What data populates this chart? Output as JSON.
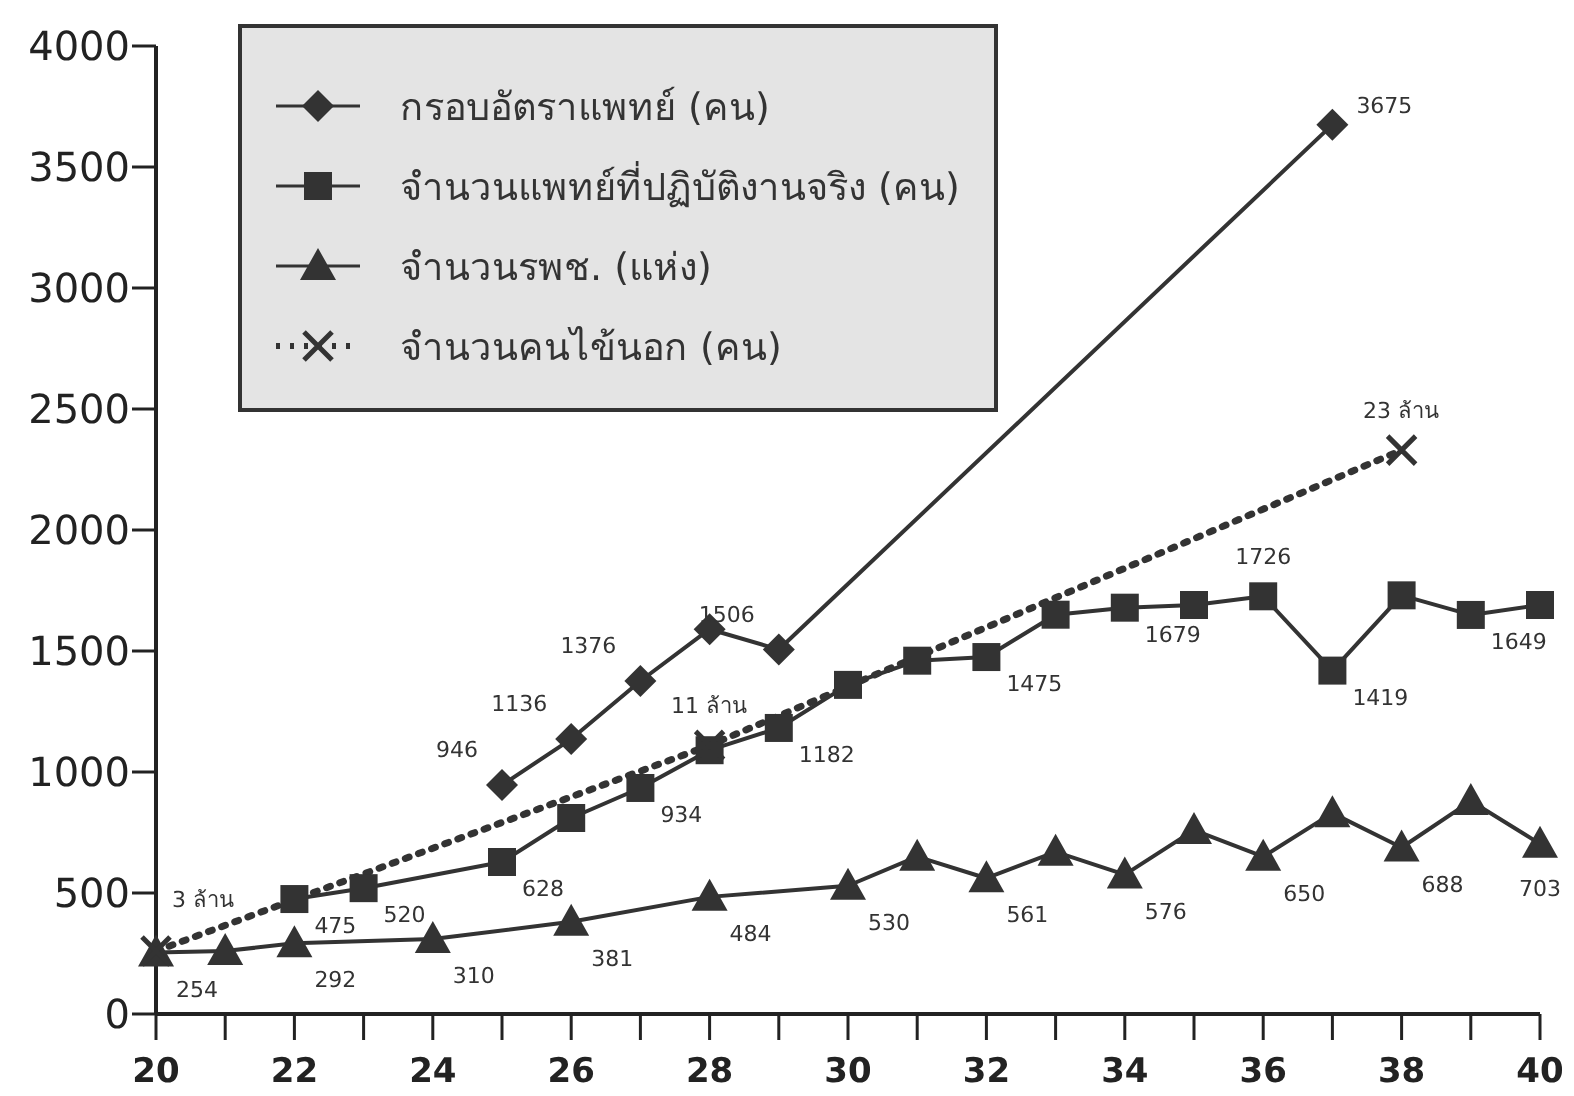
{
  "chart_data": {
    "type": "line",
    "xlim": [
      20,
      40
    ],
    "ylim": [
      0,
      4000
    ],
    "xticks": [
      20,
      {
        "value": 21,
        "label": null
      },
      22,
      {
        "value": 23,
        "label": null
      },
      24,
      {
        "value": 25,
        "label": null
      },
      26,
      {
        "value": 27,
        "label": null
      },
      28,
      {
        "value": 29,
        "label": null
      },
      30,
      {
        "value": 31,
        "label": null
      },
      32,
      {
        "value": 33,
        "label": null
      },
      34,
      {
        "value": 35,
        "label": null
      },
      36,
      {
        "value": 37,
        "label": null
      },
      38,
      {
        "value": 39,
        "label": null
      },
      40
    ],
    "yticks": [
      0,
      500,
      1000,
      1500,
      2000,
      2500,
      3000,
      3500,
      4000
    ],
    "grid": false,
    "legend": "top left",
    "annotations": [
      {
        "text": "3 ล้าน",
        "x": 20,
        "y": 260
      },
      {
        "text": "11 ล้าน",
        "x": 28,
        "y": 1110
      },
      {
        "text": "23 ล้าน",
        "x": 38,
        "y": 2330
      }
    ],
    "series": [
      {
        "name": "กรอบอัตราแพทย์ (คน)",
        "color": "#333333",
        "marker": "diamond",
        "line_style": "solid",
        "x": [
          25,
          26,
          27,
          28,
          29,
          37
        ],
        "values": [
          946,
          1136,
          1376,
          1590,
          1506,
          3675
        ],
        "value_labels": [
          "946",
          "1136",
          "1376",
          null,
          "1506",
          "3675"
        ]
      },
      {
        "name": "จำนวนแพทย์ที่ปฏิบัติงานจริง (คน)",
        "color": "#333333",
        "marker": "square",
        "line_style": "solid",
        "x": [
          22,
          23,
          25,
          26,
          27,
          28,
          29,
          30,
          31,
          32,
          33,
          34,
          35,
          36,
          37,
          38,
          39,
          40
        ],
        "values": [
          475,
          520,
          628,
          810,
          934,
          1090,
          1182,
          1360,
          1460,
          1475,
          1650,
          1679,
          1690,
          1726,
          1419,
          1730,
          1649,
          1690
        ],
        "value_labels": [
          "475",
          "520",
          "628",
          null,
          "934",
          null,
          "1182",
          null,
          null,
          "1475",
          null,
          "1679",
          null,
          "1726",
          "1419",
          null,
          "1649",
          null
        ]
      },
      {
        "name": "จำนวนรพช. (แห่ง)",
        "color": "#333333",
        "marker": "triangle",
        "line_style": "solid",
        "x": [
          20,
          21,
          22,
          24,
          26,
          28,
          30,
          31,
          32,
          33,
          34,
          35,
          36,
          37,
          38,
          39,
          40
        ],
        "values": [
          254,
          260,
          292,
          310,
          381,
          484,
          530,
          650,
          561,
          670,
          576,
          760,
          650,
          830,
          688,
          880,
          703
        ],
        "value_labels": [
          "254",
          null,
          "292",
          "310",
          "381",
          "484",
          "530",
          null,
          "561",
          null,
          "576",
          null,
          "650",
          null,
          "688",
          null,
          "703"
        ]
      },
      {
        "name": "จำนวนคนไข้นอก (คน)",
        "color": "#333333",
        "marker": "cross",
        "line_style": "dotted",
        "x": [
          20,
          28,
          38
        ],
        "values": [
          260,
          1110,
          2330
        ]
      }
    ]
  }
}
